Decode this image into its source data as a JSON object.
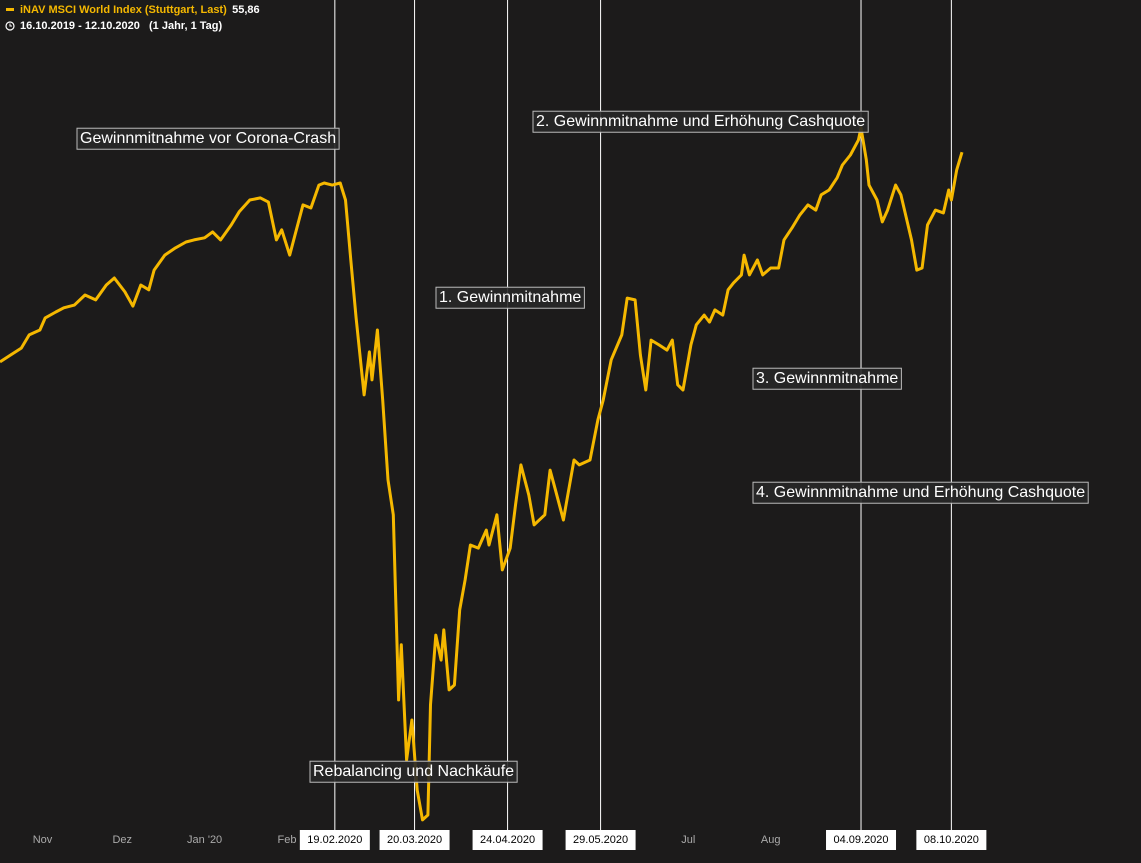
{
  "chart_data": {
    "type": "line",
    "title": "iNAV MSCI World Index (Stuttgart, Last)",
    "period": "16.10.2019 - 12.10.2020",
    "period_note": "(1 Jahr, 1 Tag)",
    "xlim": [
      "2019-10-16",
      "2020-10-12"
    ],
    "ylim": [
      35.5,
      60.25
    ],
    "xticks": [
      {
        "value": "2019-11-01",
        "label": "Nov"
      },
      {
        "value": "2019-12-01",
        "label": "Dez"
      },
      {
        "value": "2020-01-01",
        "label": "Jan '20"
      },
      {
        "value": "2020-02-01",
        "label": "Feb"
      },
      {
        "value": "2020-07-01",
        "label": "Jul"
      },
      {
        "value": "2020-08-01",
        "label": "Aug"
      }
    ],
    "x": [
      "2019-10-16",
      "2019-10-20",
      "2019-10-24",
      "2019-10-27",
      "2019-10-31",
      "2019-11-02",
      "2019-11-06",
      "2019-11-09",
      "2019-11-13",
      "2019-11-17",
      "2019-11-21",
      "2019-11-25",
      "2019-11-28",
      "2019-12-02",
      "2019-12-05",
      "2019-12-08",
      "2019-12-11",
      "2019-12-13",
      "2019-12-17",
      "2019-12-21",
      "2019-12-25",
      "2019-12-28",
      "2020-01-01",
      "2020-01-04",
      "2020-01-07",
      "2020-01-11",
      "2020-01-14",
      "2020-01-18",
      "2020-01-22",
      "2020-01-25",
      "2020-01-28",
      "2020-01-30",
      "2020-02-02",
      "2020-02-04",
      "2020-02-07",
      "2020-02-10",
      "2020-02-13",
      "2020-02-15",
      "2020-02-18",
      "2020-02-21",
      "2020-02-23",
      "2020-02-25",
      "2020-02-27",
      "2020-03-01",
      "2020-03-03",
      "2020-03-04",
      "2020-03-06",
      "2020-03-08",
      "2020-03-10",
      "2020-03-12",
      "2020-03-14",
      "2020-03-15",
      "2020-03-17",
      "2020-03-19",
      "2020-03-21",
      "2020-03-23",
      "2020-03-25",
      "2020-03-26",
      "2020-03-28",
      "2020-03-30",
      "2020-03-31",
      "2020-04-02",
      "2020-04-04",
      "2020-04-06",
      "2020-04-08",
      "2020-04-10",
      "2020-04-13",
      "2020-04-16",
      "2020-04-17",
      "2020-04-20",
      "2020-04-22",
      "2020-04-25",
      "2020-04-27",
      "2020-04-29",
      "2020-05-02",
      "2020-05-04",
      "2020-05-08",
      "2020-05-10",
      "2020-05-12",
      "2020-05-15",
      "2020-05-16",
      "2020-05-19",
      "2020-05-21",
      "2020-05-25",
      "2020-05-28",
      "2020-05-30",
      "2020-06-02",
      "2020-06-06",
      "2020-06-08",
      "2020-06-11",
      "2020-06-13",
      "2020-06-15",
      "2020-06-17",
      "2020-06-20",
      "2020-06-23",
      "2020-06-25",
      "2020-06-27",
      "2020-06-29",
      "2020-07-02",
      "2020-07-04",
      "2020-07-07",
      "2020-07-09",
      "2020-07-11",
      "2020-07-14",
      "2020-07-16",
      "2020-07-18",
      "2020-07-21",
      "2020-07-22",
      "2020-07-24",
      "2020-07-27",
      "2020-07-29",
      "2020-08-01",
      "2020-08-04",
      "2020-08-06",
      "2020-08-09",
      "2020-08-12",
      "2020-08-15",
      "2020-08-18",
      "2020-08-20",
      "2020-08-23",
      "2020-08-26",
      "2020-08-28",
      "2020-08-31",
      "2020-09-03",
      "2020-09-04",
      "2020-09-06",
      "2020-09-07",
      "2020-09-10",
      "2020-09-12",
      "2020-09-14",
      "2020-09-17",
      "2020-09-19",
      "2020-09-23",
      "2020-09-25",
      "2020-09-27",
      "2020-09-29",
      "2020-10-02",
      "2020-10-05",
      "2020-10-07",
      "2020-10-08",
      "2020-10-10",
      "2020-10-12"
    ],
    "series": [
      {
        "name": "iNAV MSCI World Index (Stuttgart, Last)",
        "color": "#f5b800",
        "last": {
          "value": 55.86,
          "label": "55,86"
        },
        "values": [
          49.81,
          50.01,
          50.21,
          50.59,
          50.73,
          51.08,
          51.25,
          51.37,
          51.45,
          51.74,
          51.6,
          52.03,
          52.23,
          51.83,
          51.42,
          52.03,
          51.89,
          52.46,
          52.89,
          53.1,
          53.27,
          53.33,
          53.39,
          53.56,
          53.33,
          53.76,
          54.14,
          54.48,
          54.54,
          54.42,
          53.33,
          53.62,
          52.89,
          53.47,
          54.34,
          54.25,
          54.91,
          54.97,
          54.91,
          54.97,
          54.48,
          52.75,
          51.08,
          48.86,
          50.1,
          49.29,
          50.73,
          48.71,
          46.41,
          45.4,
          40.06,
          41.65,
          38.33,
          39.48,
          37.46,
          36.6,
          36.74,
          39.92,
          41.93,
          41.21,
          42.08,
          40.35,
          40.49,
          42.66,
          43.52,
          44.53,
          44.44,
          44.96,
          44.53,
          45.4,
          43.81,
          44.44,
          45.68,
          46.84,
          45.97,
          45.11,
          45.4,
          46.69,
          46.12,
          45.25,
          45.68,
          46.98,
          46.84,
          46.98,
          48.14,
          48.71,
          49.87,
          50.59,
          51.65,
          51.6,
          50.01,
          49.0,
          50.44,
          50.3,
          50.15,
          50.44,
          49.15,
          49.0,
          50.3,
          50.88,
          51.16,
          50.96,
          51.31,
          51.16,
          51.89,
          52.09,
          52.32,
          52.89,
          52.32,
          52.75,
          52.32,
          52.52,
          52.52,
          53.33,
          53.67,
          54.05,
          54.34,
          54.19,
          54.63,
          54.77,
          55.12,
          55.49,
          55.78,
          56.21,
          56.56,
          55.64,
          54.91,
          54.48,
          53.85,
          54.19,
          54.91,
          54.63,
          53.33,
          52.46,
          52.52,
          53.76,
          54.19,
          54.11,
          54.77,
          54.48,
          55.35,
          55.86
        ]
      }
    ],
    "markers": [
      {
        "value": "2020-02-19",
        "label": "19.02.2020"
      },
      {
        "value": "2020-03-20",
        "label": "20.03.2020"
      },
      {
        "value": "2020-04-24",
        "label": "24.04.2020"
      },
      {
        "value": "2020-05-29",
        "label": "29.05.2020"
      },
      {
        "value": "2020-09-04",
        "label": "04.09.2020"
      },
      {
        "value": "2020-10-08",
        "label": "08.10.2020"
      }
    ],
    "annotations": [
      "Gewinnmitnahme vor Corona-Crash",
      "Rebalancing und Nachkäufe",
      "1. Gewinnmitnahme",
      "2. Gewinnmitnahme und Erhöhung Cashquote",
      "3. Gewinnmitnahme",
      "4. Gewinnmitnahme und Erhöhung Cashquote"
    ]
  }
}
